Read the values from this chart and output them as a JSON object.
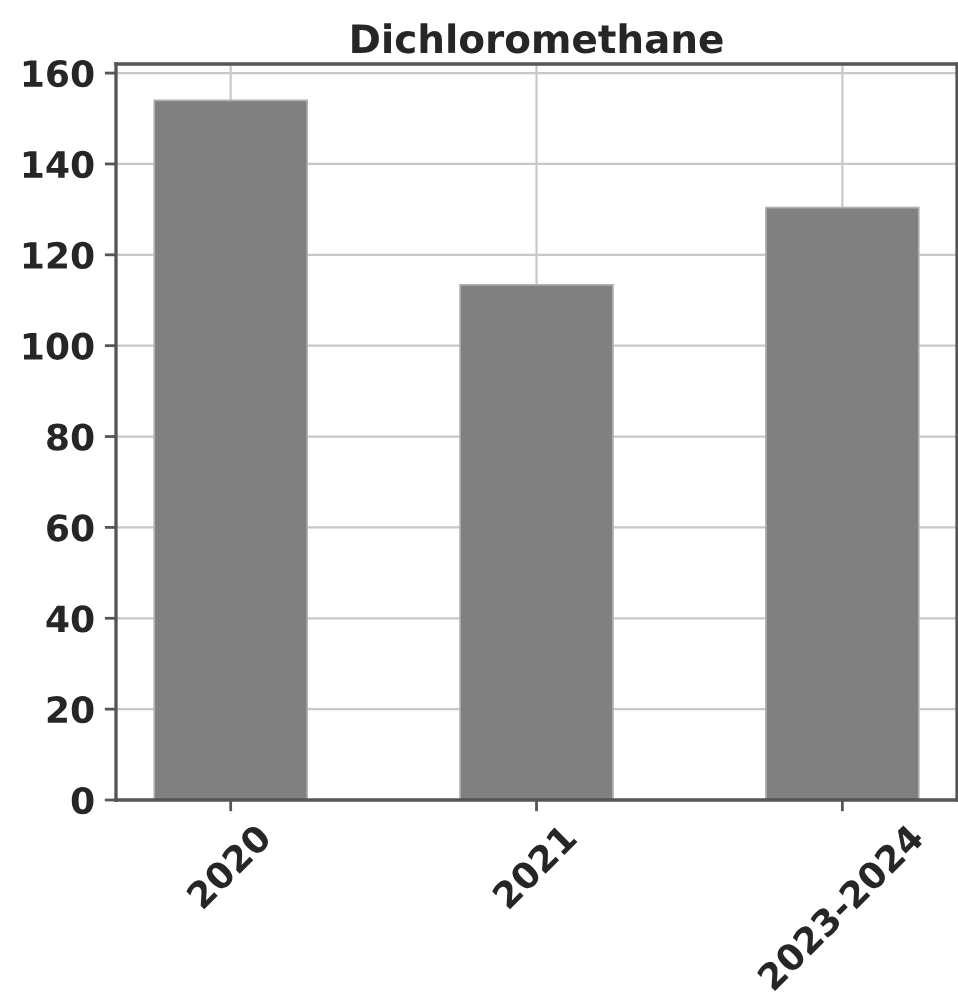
{
  "chart_data": {
    "type": "bar",
    "title": "Dichloromethane",
    "categories": [
      "2020",
      "2021",
      "2023-2024"
    ],
    "values": [
      154,
      113.4,
      130.4
    ],
    "color": "#808080",
    "ylim": [
      0,
      162
    ],
    "yticks": [
      0,
      20,
      40,
      60,
      80,
      100,
      120,
      140,
      160
    ],
    "grid": true
  }
}
